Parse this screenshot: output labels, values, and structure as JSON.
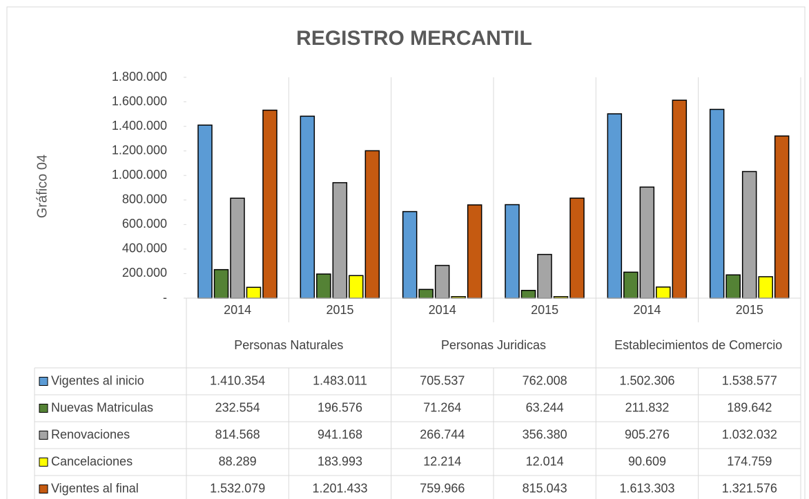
{
  "chart_data": {
    "type": "bar",
    "title": "REGISTRO MERCANTIL",
    "y_label": "Gráfico 04",
    "categories": [
      "2014",
      "2015",
      "2014",
      "2015",
      "2014",
      "2015"
    ],
    "groups": [
      "Personas Naturales",
      "Personas Juridicas",
      "Establecimientos de Comercio"
    ],
    "series": [
      {
        "name": "Vigentes al inicio",
        "color": "#5b9bd5",
        "values": [
          1410354,
          1483011,
          705537,
          762008,
          1502306,
          1538577
        ],
        "value_labels": [
          "1.410.354",
          "1.483.011",
          "705.537",
          "762.008",
          "1.502.306",
          "1.538.577"
        ]
      },
      {
        "name": "Nuevas Matriculas",
        "color": "#548235",
        "values": [
          232554,
          196576,
          71264,
          63244,
          211832,
          189642
        ],
        "value_labels": [
          "232.554",
          "196.576",
          "71.264",
          "63.244",
          "211.832",
          "189.642"
        ]
      },
      {
        "name": "Renovaciones",
        "color": "#a5a5a5",
        "values": [
          814568,
          941168,
          266744,
          356380,
          905276,
          1032032
        ],
        "value_labels": [
          "814.568",
          "941.168",
          "266.744",
          "356.380",
          "905.276",
          "1.032.032"
        ]
      },
      {
        "name": "Cancelaciones",
        "color": "#ffff00",
        "values": [
          88289,
          183993,
          12214,
          12014,
          90609,
          174759
        ],
        "value_labels": [
          "88.289",
          "183.993",
          "12.214",
          "12.014",
          "90.609",
          "174.759"
        ]
      },
      {
        "name": "Vigentes al final",
        "color": "#c55a11",
        "values": [
          1532079,
          1201433,
          759966,
          815043,
          1613303,
          1321576
        ],
        "value_labels": [
          "1.532.079",
          "1.201.433",
          "759.966",
          "815.043",
          "1.613.303",
          "1.321.576"
        ]
      }
    ],
    "ylim": [
      0,
      1800000
    ],
    "yticks": [
      {
        "value": 0,
        "label": "-"
      },
      {
        "value": 200000,
        "label": "200.000"
      },
      {
        "value": 400000,
        "label": "400.000"
      },
      {
        "value": 600000,
        "label": "600.000"
      },
      {
        "value": 800000,
        "label": "800.000"
      },
      {
        "value": 1000000,
        "label": "1.000.000"
      },
      {
        "value": 1200000,
        "label": "1.200.000"
      },
      {
        "value": 1400000,
        "label": "1.400.000"
      },
      {
        "value": 1600000,
        "label": "1.600.000"
      },
      {
        "value": 1800000,
        "label": "1.800.000"
      }
    ]
  }
}
